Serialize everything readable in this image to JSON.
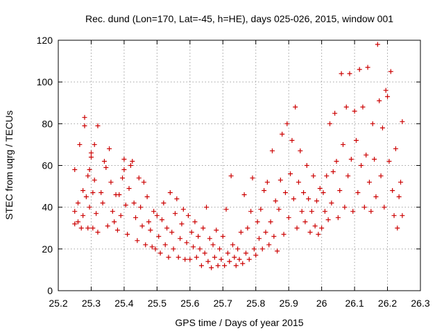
{
  "chart_data": {
    "type": "scatter",
    "title": "Rec. dund (Lon=170, Lat=-45, h=HE), days 025-026, 2015, window 001",
    "xlabel": "GPS time / Days of year 2015",
    "ylabel": "STEC from uqrg / TECUs",
    "xlim": [
      25.2,
      26.3
    ],
    "ylim": [
      0,
      120
    ],
    "xticks": [
      "25.2",
      "25.3",
      "25.4",
      "25.5",
      "25.6",
      "25.7",
      "25.8",
      "25.9",
      "26",
      "26.1",
      "26.2",
      "26.3"
    ],
    "yticks": [
      "0",
      "20",
      "40",
      "60",
      "80",
      "100",
      "120"
    ],
    "grid": true,
    "marker": "plus",
    "color": "#cc0000",
    "points": [
      [
        25.25,
        32
      ],
      [
        25.25,
        38
      ],
      [
        25.25,
        58
      ],
      [
        25.26,
        42
      ],
      [
        25.26,
        33
      ],
      [
        25.265,
        70
      ],
      [
        25.27,
        30
      ],
      [
        25.275,
        36
      ],
      [
        25.275,
        48
      ],
      [
        25.28,
        79
      ],
      [
        25.28,
        83
      ],
      [
        25.285,
        45
      ],
      [
        25.29,
        30
      ],
      [
        25.29,
        55
      ],
      [
        25.295,
        40
      ],
      [
        25.295,
        58
      ],
      [
        25.3,
        64
      ],
      [
        25.3,
        66
      ],
      [
        25.305,
        47
      ],
      [
        25.305,
        30
      ],
      [
        25.31,
        70
      ],
      [
        25.31,
        53
      ],
      [
        25.315,
        37
      ],
      [
        25.32,
        79
      ],
      [
        25.32,
        28
      ],
      [
        25.33,
        47
      ],
      [
        25.335,
        42
      ],
      [
        25.34,
        62
      ],
      [
        25.345,
        59
      ],
      [
        25.35,
        31
      ],
      [
        25.355,
        68
      ],
      [
        25.36,
        52
      ],
      [
        25.365,
        38
      ],
      [
        25.37,
        33
      ],
      [
        25.375,
        46
      ],
      [
        25.38,
        29
      ],
      [
        25.385,
        46
      ],
      [
        25.39,
        36
      ],
      [
        25.395,
        54
      ],
      [
        25.4,
        63
      ],
      [
        25.4,
        58
      ],
      [
        25.405,
        41
      ],
      [
        25.41,
        27
      ],
      [
        25.415,
        49
      ],
      [
        25.42,
        60
      ],
      [
        25.425,
        62
      ],
      [
        25.43,
        42
      ],
      [
        25.435,
        35
      ],
      [
        25.44,
        24
      ],
      [
        25.445,
        54
      ],
      [
        25.45,
        40
      ],
      [
        25.455,
        31
      ],
      [
        25.46,
        52
      ],
      [
        25.465,
        22
      ],
      [
        25.47,
        45
      ],
      [
        25.475,
        33
      ],
      [
        25.48,
        29
      ],
      [
        25.485,
        21
      ],
      [
        25.49,
        38
      ],
      [
        25.495,
        20
      ],
      [
        25.5,
        36
      ],
      [
        25.505,
        26
      ],
      [
        25.51,
        18
      ],
      [
        25.515,
        34
      ],
      [
        25.52,
        42
      ],
      [
        25.525,
        22
      ],
      [
        25.53,
        30
      ],
      [
        25.535,
        16
      ],
      [
        25.54,
        47
      ],
      [
        25.545,
        28
      ],
      [
        25.55,
        20
      ],
      [
        25.555,
        37
      ],
      [
        25.56,
        44
      ],
      [
        25.565,
        16
      ],
      [
        25.57,
        25
      ],
      [
        25.575,
        32
      ],
      [
        25.58,
        39
      ],
      [
        25.585,
        15
      ],
      [
        25.59,
        23
      ],
      [
        25.595,
        36
      ],
      [
        25.6,
        15
      ],
      [
        25.605,
        28
      ],
      [
        25.61,
        21
      ],
      [
        25.615,
        33
      ],
      [
        25.62,
        16
      ],
      [
        25.625,
        26
      ],
      [
        25.63,
        20
      ],
      [
        25.635,
        12
      ],
      [
        25.64,
        30
      ],
      [
        25.645,
        18
      ],
      [
        25.65,
        40
      ],
      [
        25.655,
        14
      ],
      [
        25.66,
        25
      ],
      [
        25.665,
        11
      ],
      [
        25.67,
        22
      ],
      [
        25.675,
        16
      ],
      [
        25.68,
        29
      ],
      [
        25.685,
        12
      ],
      [
        25.69,
        20
      ],
      [
        25.695,
        15
      ],
      [
        25.7,
        26
      ],
      [
        25.705,
        12
      ],
      [
        25.71,
        39
      ],
      [
        25.715,
        18
      ],
      [
        25.72,
        14
      ],
      [
        25.725,
        55
      ],
      [
        25.73,
        22
      ],
      [
        25.735,
        16
      ],
      [
        25.74,
        12
      ],
      [
        25.745,
        20
      ],
      [
        25.75,
        15
      ],
      [
        25.755,
        28
      ],
      [
        25.76,
        13
      ],
      [
        25.765,
        46
      ],
      [
        25.77,
        18
      ],
      [
        25.775,
        30
      ],
      [
        25.78,
        15
      ],
      [
        25.785,
        38
      ],
      [
        25.79,
        54
      ],
      [
        25.795,
        20
      ],
      [
        25.8,
        17
      ],
      [
        25.805,
        33
      ],
      [
        25.81,
        25
      ],
      [
        25.815,
        39
      ],
      [
        25.82,
        20
      ],
      [
        25.825,
        48
      ],
      [
        25.83,
        28
      ],
      [
        25.835,
        52
      ],
      [
        25.84,
        22
      ],
      [
        25.845,
        33
      ],
      [
        25.85,
        67
      ],
      [
        25.855,
        26
      ],
      [
        25.86,
        43
      ],
      [
        25.865,
        19
      ],
      [
        25.87,
        39
      ],
      [
        25.875,
        53
      ],
      [
        25.88,
        75
      ],
      [
        25.885,
        27
      ],
      [
        25.89,
        47
      ],
      [
        25.895,
        80
      ],
      [
        25.9,
        35
      ],
      [
        25.905,
        56
      ],
      [
        25.91,
        72
      ],
      [
        25.915,
        44
      ],
      [
        25.92,
        88
      ],
      [
        25.925,
        30
      ],
      [
        25.93,
        52
      ],
      [
        25.935,
        67
      ],
      [
        25.94,
        38
      ],
      [
        25.945,
        47
      ],
      [
        25.95,
        33
      ],
      [
        25.955,
        60
      ],
      [
        25.96,
        44
      ],
      [
        25.965,
        28
      ],
      [
        25.97,
        38
      ],
      [
        25.975,
        55
      ],
      [
        25.98,
        31
      ],
      [
        25.985,
        43
      ],
      [
        25.99,
        27
      ],
      [
        25.995,
        49
      ],
      [
        26.0,
        30
      ],
      [
        26.005,
        47
      ],
      [
        26.01,
        38
      ],
      [
        26.015,
        55
      ],
      [
        26.02,
        34
      ],
      [
        26.025,
        80
      ],
      [
        26.03,
        42
      ],
      [
        26.035,
        57
      ],
      [
        26.04,
        85
      ],
      [
        26.045,
        62
      ],
      [
        26.05,
        35
      ],
      [
        26.055,
        48
      ],
      [
        26.06,
        104
      ],
      [
        26.065,
        70
      ],
      [
        26.07,
        40
      ],
      [
        26.075,
        88
      ],
      [
        26.08,
        55
      ],
      [
        26.085,
        104
      ],
      [
        26.09,
        63
      ],
      [
        26.095,
        38
      ],
      [
        26.1,
        86
      ],
      [
        26.105,
        72
      ],
      [
        26.11,
        47
      ],
      [
        26.115,
        106
      ],
      [
        26.12,
        60
      ],
      [
        26.125,
        88
      ],
      [
        26.13,
        40
      ],
      [
        26.135,
        65
      ],
      [
        26.14,
        107
      ],
      [
        26.145,
        52
      ],
      [
        26.15,
        38
      ],
      [
        26.155,
        80
      ],
      [
        26.16,
        63
      ],
      [
        26.165,
        45
      ],
      [
        26.17,
        118
      ],
      [
        26.175,
        91
      ],
      [
        26.18,
        55
      ],
      [
        26.185,
        78
      ],
      [
        26.19,
        40
      ],
      [
        26.195,
        96
      ],
      [
        26.2,
        93
      ],
      [
        26.205,
        62
      ],
      [
        26.21,
        105
      ],
      [
        26.215,
        48
      ],
      [
        26.22,
        36
      ],
      [
        26.225,
        68
      ],
      [
        26.23,
        30
      ],
      [
        26.235,
        45
      ],
      [
        26.24,
        52
      ],
      [
        26.245,
        81
      ],
      [
        26.245,
        36
      ]
    ]
  }
}
